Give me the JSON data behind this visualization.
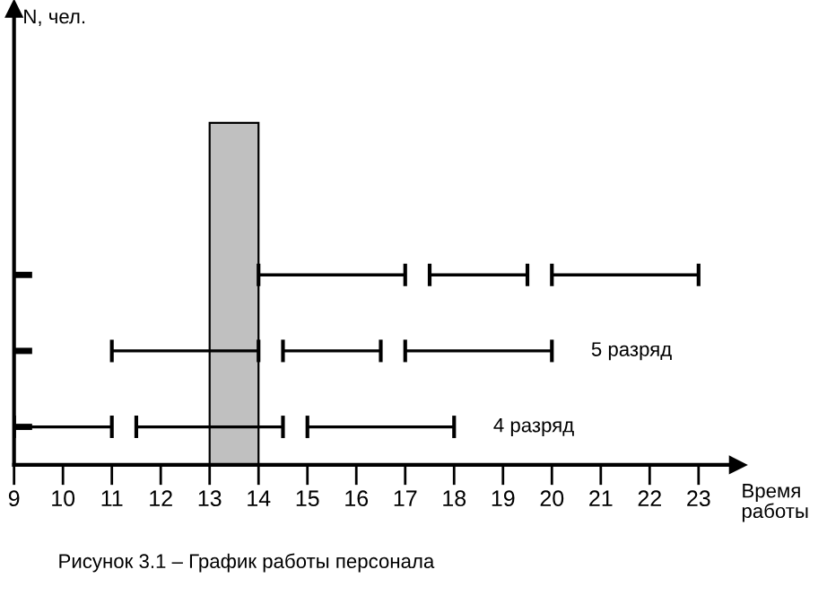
{
  "chart_data": {
    "type": "bar",
    "orientation": "horizontal",
    "categories": [
      null,
      null,
      null,
      null,
      "5 разряд",
      "4 разряд"
    ],
    "series": [
      {
        "color": "#000000",
        "base": [
          null,
          null,
          null,
          14,
          11,
          9
        ],
        "values": [
          null,
          null,
          null,
          3,
          3,
          2
        ]
      },
      {
        "color": "#000000",
        "base": [
          null,
          null,
          null,
          17.5,
          14.5,
          11.5
        ],
        "values": [
          null,
          null,
          null,
          2,
          2,
          3
        ]
      },
      {
        "color": "#000000",
        "base": [
          null,
          null,
          null,
          20,
          17,
          15
        ],
        "values": [
          null,
          null,
          null,
          3,
          3,
          3
        ]
      }
    ],
    "xlabel": "Время\nработы",
    "ylabel": "N, чел.",
    "xlim": [
      9,
      23.8
    ],
    "xticks": [
      9,
      10,
      11,
      12,
      13,
      14,
      15,
      16,
      17,
      18,
      19,
      20,
      21,
      22,
      23
    ],
    "bands": [
      {
        "axis": "x",
        "from": 13,
        "to": 14,
        "color": "#c0c0c0"
      }
    ],
    "annotations": [
      "Рисунок 3.1 – График работы персонала"
    ],
    "grid": false,
    "legend": false
  }
}
